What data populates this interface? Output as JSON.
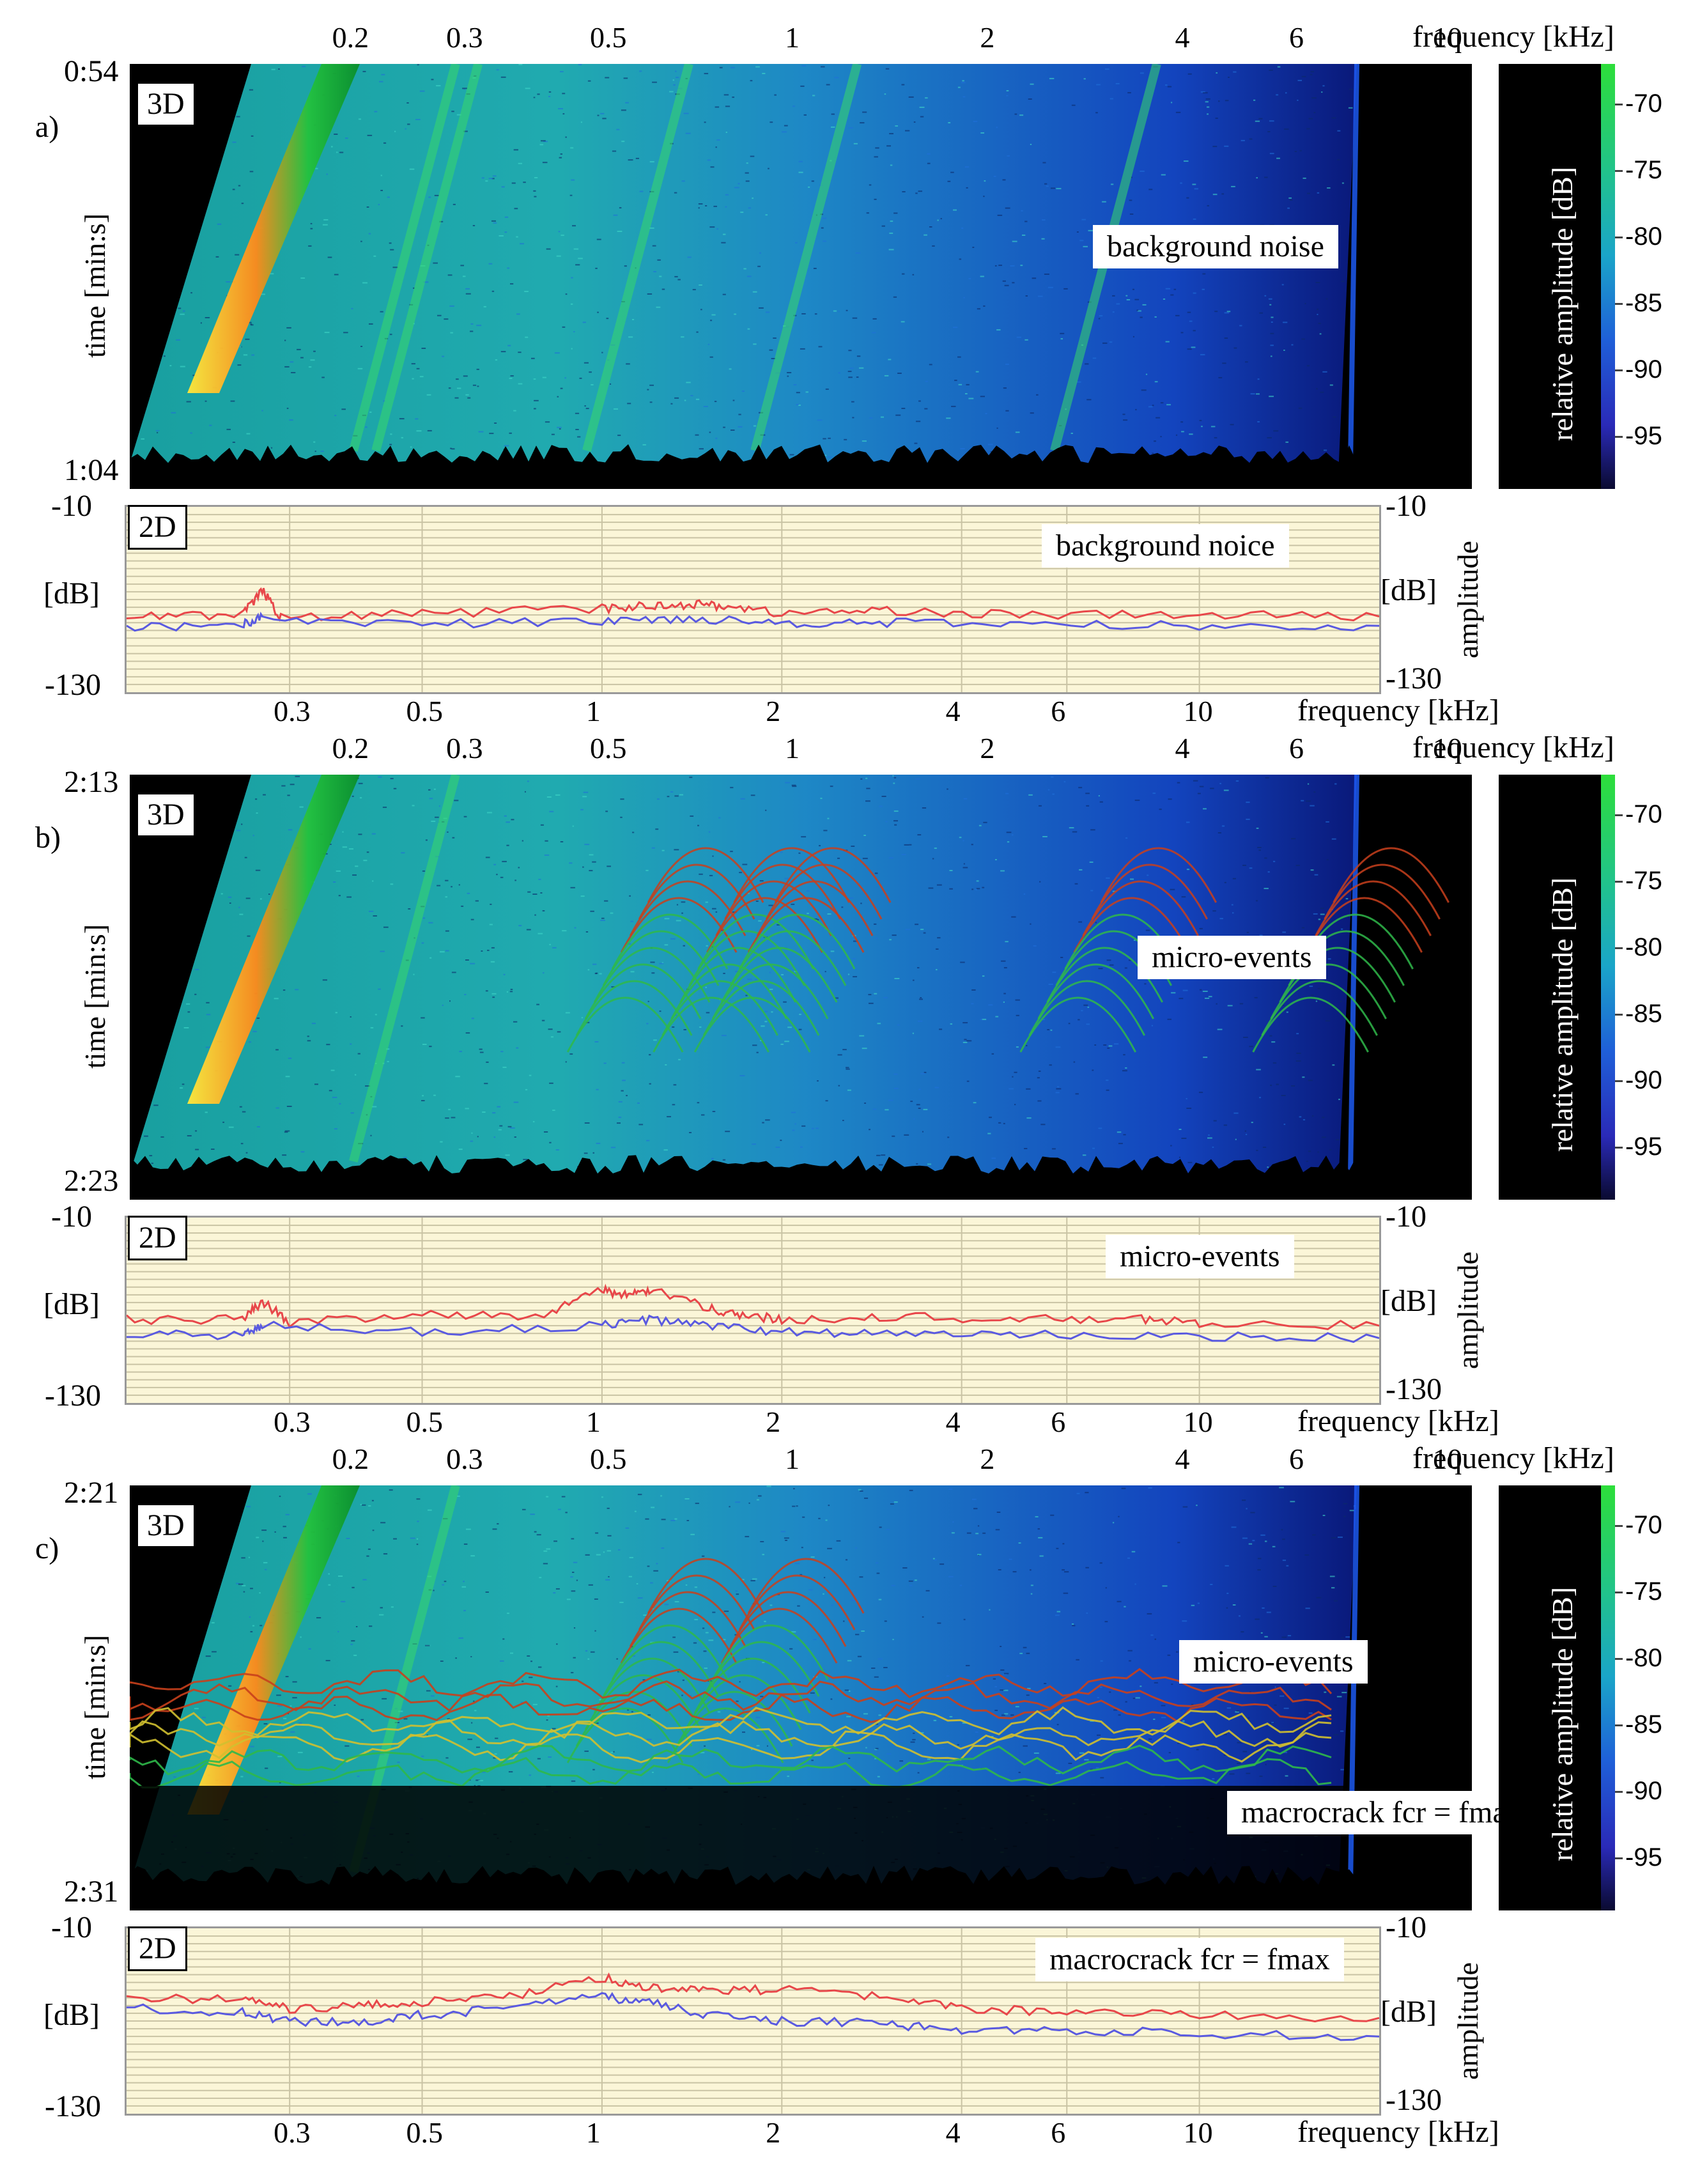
{
  "chart_data": [
    {
      "panel_label": "a)",
      "type": "heatmap",
      "view_tag": "3D",
      "top_axis": {
        "ticks": [
          "0.2",
          "0.3",
          "0.5",
          "1",
          "2",
          "4",
          "6",
          "10"
        ],
        "tick_values": [
          0.2,
          0.3,
          0.5,
          1,
          2,
          4,
          6,
          10
        ],
        "label": "frequency [kHz]",
        "scale": "log"
      },
      "time_axis": {
        "label": "time [min:s]",
        "start": "0:54",
        "end": "1:04"
      },
      "colorbar": {
        "label": "relative amplitude [dB]",
        "ticks": [
          "-70",
          "-75",
          "-80",
          "-85",
          "-90",
          "-95"
        ],
        "range": [
          -99,
          -67
        ]
      },
      "annotation": "background noise",
      "events": [
        {
          "freq_khz": 0.24,
          "kind": "harmonic-line"
        },
        {
          "freq_khz": 0.26,
          "kind": "harmonic-line"
        },
        {
          "freq_khz": 0.55,
          "kind": "harmonic-line"
        },
        {
          "freq_khz": 1.0,
          "kind": "harmonic-line"
        },
        {
          "freq_khz": 2.9,
          "kind": "harmonic-line"
        }
      ],
      "spectrum_2d": {
        "view_tag": "2D",
        "annotation": "background noice",
        "y_axis": {
          "label": "[dB]",
          "right_label": "amplitude",
          "ticks": [
            "-10",
            "-130"
          ],
          "range": [
            -130,
            -10
          ]
        },
        "x_axis": {
          "ticks": [
            "0.3",
            "0.5",
            "1",
            "2",
            "4",
            "6",
            "10"
          ],
          "tick_values": [
            0.3,
            0.5,
            1,
            2,
            4,
            6,
            10
          ],
          "label": "frequency [kHz]",
          "range": [
            0.16,
            20
          ],
          "scale": "log"
        },
        "series": [
          {
            "color": "#e8474a",
            "freq_khz": [
              0.16,
              0.25,
              0.27,
              0.29,
              0.5,
              1.0,
              1.2,
              1.4,
              1.6,
              2.0,
              3.0,
              5.0,
              10.0,
              20.0
            ],
            "values": [
              -80,
              -80,
              -64,
              -82,
              -79,
              -76,
              -74,
              -73,
              -74,
              -79,
              -77,
              -80,
              -80,
              -81
            ]
          },
          {
            "color": "#5a5ae0",
            "freq_khz": [
              0.16,
              0.25,
              0.27,
              0.5,
              1.0,
              1.4,
              2.0,
              3.0,
              5.0,
              10.0,
              20.0
            ],
            "values": [
              -88,
              -86,
              -82,
              -86,
              -84,
              -82,
              -85,
              -85,
              -86,
              -87,
              -87
            ]
          }
        ]
      }
    },
    {
      "panel_label": "b)",
      "type": "heatmap",
      "view_tag": "3D",
      "top_axis": {
        "ticks": [
          "0.2",
          "0.3",
          "0.5",
          "1",
          "2",
          "4",
          "6",
          "10"
        ],
        "tick_values": [
          0.2,
          0.3,
          0.5,
          1,
          2,
          4,
          6,
          10
        ],
        "label": "frequency [kHz]",
        "scale": "log"
      },
      "time_axis": {
        "label": "time [min:s]",
        "start": "2:13",
        "end": "2:23"
      },
      "colorbar": {
        "label": "relative amplitude [dB]",
        "ticks": [
          "-70",
          "-75",
          "-80",
          "-85",
          "-90",
          "-95"
        ],
        "range": [
          -99,
          -67
        ]
      },
      "annotation": "micro-events",
      "events": [
        {
          "freq_khz": 0.24,
          "kind": "harmonic-line"
        },
        {
          "freq_khz": 0.7,
          "kind": "micro-event"
        },
        {
          "freq_khz": 0.95,
          "kind": "micro-event"
        },
        {
          "freq_khz": 1.1,
          "kind": "micro-event"
        },
        {
          "freq_khz": 3.5,
          "kind": "micro-event"
        },
        {
          "freq_khz": 8.0,
          "kind": "micro-event"
        }
      ],
      "spectrum_2d": {
        "view_tag": "2D",
        "annotation": "micro-events",
        "y_axis": {
          "label": "[dB]",
          "right_label": "amplitude",
          "ticks": [
            "-10",
            "-130"
          ],
          "range": [
            -130,
            -10
          ]
        },
        "x_axis": {
          "ticks": [
            "0.3",
            "0.5",
            "1",
            "2",
            "4",
            "6",
            "10"
          ],
          "tick_values": [
            0.3,
            0.5,
            1,
            2,
            4,
            6,
            10
          ],
          "label": "frequency [kHz]",
          "range": [
            0.16,
            20
          ],
          "scale": "log"
        },
        "series": [
          {
            "color": "#e8474a",
            "freq_khz": [
              0.16,
              0.25,
              0.27,
              0.3,
              0.5,
              0.8,
              1.0,
              1.1,
              1.2,
              1.5,
              1.7,
              2.0,
              3.0,
              5.0,
              8.0,
              10.0,
              20.0
            ],
            "values": [
              -76,
              -76,
              -64,
              -78,
              -72,
              -74,
              -56,
              -61,
              -57,
              -68,
              -73,
              -76,
              -74,
              -76,
              -76,
              -78,
              -80
            ]
          },
          {
            "color": "#5a5ae0",
            "freq_khz": [
              0.16,
              0.25,
              0.27,
              0.5,
              1.0,
              1.2,
              1.5,
              2.0,
              3.0,
              5.0,
              10.0,
              20.0
            ],
            "values": [
              -86,
              -86,
              -80,
              -84,
              -80,
              -76,
              -80,
              -84,
              -85,
              -86,
              -87,
              -88
            ]
          }
        ]
      }
    },
    {
      "panel_label": "c)",
      "type": "heatmap",
      "view_tag": "3D",
      "top_axis": {
        "ticks": [
          "0.2",
          "0.3",
          "0.5",
          "1",
          "2",
          "4",
          "6",
          "10"
        ],
        "tick_values": [
          0.2,
          0.3,
          0.5,
          1,
          2,
          4,
          6,
          10
        ],
        "label": "frequency [kHz]",
        "scale": "log"
      },
      "time_axis": {
        "label": "time [min:s]",
        "start": "2:21",
        "end": "2:31"
      },
      "colorbar": {
        "label": "relative amplitude [dB]",
        "ticks": [
          "-70",
          "-75",
          "-80",
          "-85",
          "-90",
          "-95"
        ],
        "range": [
          -99,
          -67
        ]
      },
      "annotation": "micro-events",
      "annotation_2": "macrocrack fcr = fmax",
      "events": [
        {
          "freq_khz": 0.24,
          "kind": "harmonic-line"
        },
        {
          "freq_khz": 0.7,
          "kind": "micro-event"
        },
        {
          "freq_khz": 1.0,
          "kind": "micro-event"
        },
        {
          "freq_khz": 0.16,
          "kind": "macrocrack-start"
        },
        {
          "freq_khz": 8.0,
          "kind": "macrocrack-end"
        }
      ],
      "spectrum_2d": {
        "view_tag": "2D",
        "annotation": "macrocrack fcr = fmax",
        "y_axis": {
          "label": "[dB]",
          "right_label": "amplitude",
          "ticks": [
            "-10",
            "-130"
          ],
          "range": [
            -130,
            -10
          ]
        },
        "x_axis": {
          "ticks": [
            "0.3",
            "0.5",
            "1",
            "2",
            "4",
            "6",
            "10"
          ],
          "tick_values": [
            0.3,
            0.5,
            1,
            2,
            4,
            6,
            10
          ],
          "label": "frequency [kHz]",
          "range": [
            0.16,
            20
          ],
          "scale": "log"
        },
        "series": [
          {
            "color": "#e8474a",
            "freq_khz": [
              0.16,
              0.25,
              0.3,
              0.4,
              0.5,
              0.7,
              1.0,
              1.2,
              1.5,
              2.0,
              3.0,
              4.0,
              6.0,
              10.0,
              20.0
            ],
            "values": [
              -55,
              -56,
              -62,
              -60,
              -58,
              -54,
              -42,
              -48,
              -50,
              -50,
              -55,
              -62,
              -64,
              -66,
              -68
            ]
          },
          {
            "color": "#5a5ae0",
            "freq_khz": [
              0.16,
              0.25,
              0.3,
              0.4,
              0.5,
              0.7,
              1.0,
              1.2,
              1.5,
              2.0,
              3.0,
              4.0,
              6.0,
              10.0,
              20.0
            ],
            "values": [
              -62,
              -64,
              -70,
              -72,
              -66,
              -62,
              -54,
              -58,
              -66,
              -70,
              -72,
              -76,
              -76,
              -78,
              -80
            ]
          }
        ]
      }
    }
  ]
}
